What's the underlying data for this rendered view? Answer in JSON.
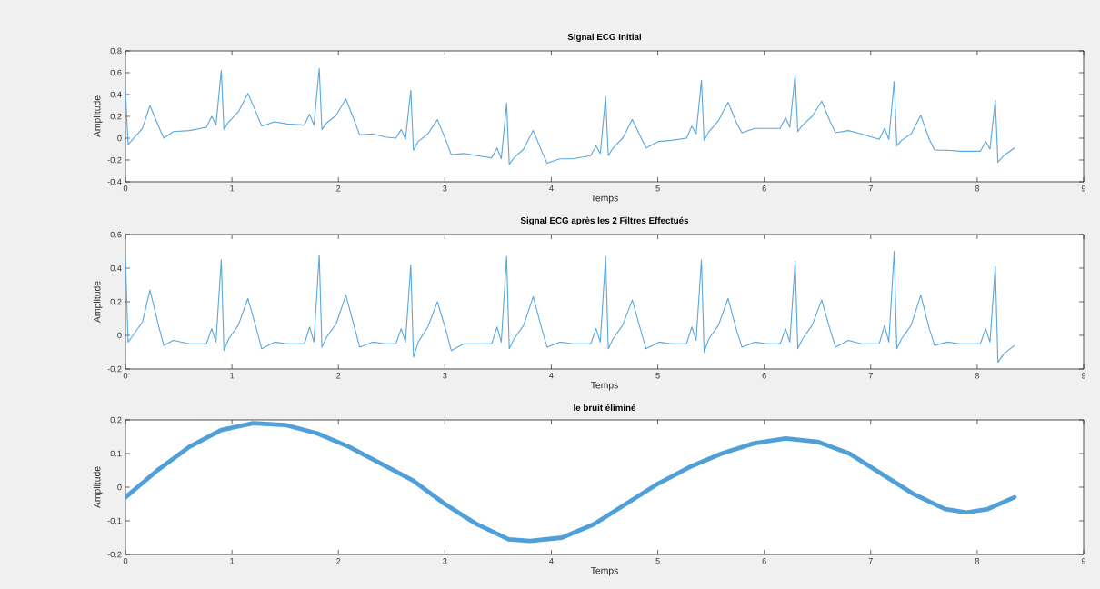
{
  "chart_data": [
    {
      "type": "line",
      "title": "Signal ECG Initial",
      "xlabel": "Temps",
      "ylabel": "Amplitude",
      "xlim": [
        0,
        9
      ],
      "xticks": [
        0,
        1,
        2,
        3,
        4,
        5,
        6,
        7,
        8,
        9
      ],
      "ylim": [
        -0.4,
        0.8
      ],
      "yticks": [
        -0.4,
        -0.2,
        0,
        0.2,
        0.4,
        0.6,
        0.8
      ],
      "x": [
        0.0,
        0.025,
        0.07,
        0.16,
        0.23,
        0.31,
        0.36,
        0.45,
        0.6,
        0.76,
        0.81,
        0.85,
        0.9,
        0.925,
        0.97,
        1.06,
        1.15,
        1.23,
        1.28,
        1.4,
        1.52,
        1.68,
        1.73,
        1.77,
        1.82,
        1.845,
        1.89,
        1.98,
        2.07,
        2.15,
        2.2,
        2.32,
        2.44,
        2.54,
        2.59,
        2.63,
        2.68,
        2.705,
        2.75,
        2.84,
        2.93,
        3.01,
        3.06,
        3.18,
        3.3,
        3.44,
        3.49,
        3.53,
        3.58,
        3.605,
        3.65,
        3.74,
        3.83,
        3.91,
        3.96,
        4.08,
        4.2,
        4.37,
        4.42,
        4.46,
        4.51,
        4.535,
        4.58,
        4.67,
        4.76,
        4.84,
        4.89,
        5.01,
        5.13,
        5.27,
        5.32,
        5.36,
        5.41,
        5.435,
        5.48,
        5.57,
        5.66,
        5.74,
        5.79,
        5.91,
        6.03,
        6.15,
        6.2,
        6.24,
        6.29,
        6.315,
        6.36,
        6.45,
        6.54,
        6.62,
        6.67,
        6.79,
        6.91,
        7.08,
        7.13,
        7.17,
        7.22,
        7.245,
        7.29,
        7.38,
        7.47,
        7.55,
        7.6,
        7.72,
        7.84,
        8.03,
        8.08,
        8.12,
        8.17,
        8.195,
        8.25,
        8.35
      ],
      "series": [
        {
          "color": "#5aa7dc",
          "values": [
            0.43,
            -0.06,
            -0.01,
            0.09,
            0.3,
            0.11,
            0.0,
            0.06,
            0.07,
            0.1,
            0.2,
            0.12,
            0.62,
            0.08,
            0.15,
            0.24,
            0.41,
            0.23,
            0.11,
            0.15,
            0.13,
            0.12,
            0.22,
            0.12,
            0.64,
            0.08,
            0.14,
            0.21,
            0.36,
            0.16,
            0.03,
            0.04,
            0.01,
            0.0,
            0.08,
            -0.01,
            0.44,
            -0.11,
            -0.03,
            0.04,
            0.17,
            -0.02,
            -0.15,
            -0.14,
            -0.16,
            -0.18,
            -0.09,
            -0.19,
            0.32,
            -0.24,
            -0.18,
            -0.1,
            0.07,
            -0.12,
            -0.23,
            -0.19,
            -0.19,
            -0.16,
            -0.07,
            -0.14,
            0.38,
            -0.16,
            -0.09,
            0.0,
            0.17,
            0.01,
            -0.09,
            -0.03,
            -0.02,
            0.0,
            0.11,
            0.04,
            0.53,
            -0.02,
            0.06,
            0.16,
            0.33,
            0.14,
            0.05,
            0.09,
            0.09,
            0.09,
            0.19,
            0.1,
            0.58,
            0.06,
            0.12,
            0.2,
            0.34,
            0.15,
            0.05,
            0.07,
            0.04,
            -0.01,
            0.09,
            -0.01,
            0.52,
            -0.07,
            -0.02,
            0.04,
            0.21,
            -0.01,
            -0.11,
            -0.11,
            -0.12,
            -0.12,
            -0.03,
            -0.1,
            0.35,
            -0.22,
            -0.16,
            -0.09
          ]
        }
      ]
    },
    {
      "type": "line",
      "title": "Signal ECG après les 2 Filtres Effectués",
      "xlabel": "Temps",
      "ylabel": "Amplitude",
      "xlim": [
        0,
        9
      ],
      "xticks": [
        0,
        1,
        2,
        3,
        4,
        5,
        6,
        7,
        8,
        9
      ],
      "ylim": [
        -0.2,
        0.6
      ],
      "yticks": [
        -0.2,
        0,
        0.2,
        0.4,
        0.6
      ],
      "x": [
        0.0,
        0.025,
        0.07,
        0.16,
        0.23,
        0.31,
        0.36,
        0.45,
        0.6,
        0.76,
        0.81,
        0.85,
        0.9,
        0.925,
        0.97,
        1.06,
        1.15,
        1.23,
        1.28,
        1.4,
        1.52,
        1.68,
        1.73,
        1.77,
        1.82,
        1.845,
        1.89,
        1.98,
        2.07,
        2.15,
        2.2,
        2.32,
        2.44,
        2.54,
        2.59,
        2.63,
        2.68,
        2.705,
        2.75,
        2.84,
        2.93,
        3.01,
        3.06,
        3.18,
        3.3,
        3.44,
        3.49,
        3.53,
        3.58,
        3.605,
        3.65,
        3.74,
        3.83,
        3.91,
        3.96,
        4.08,
        4.2,
        4.37,
        4.42,
        4.46,
        4.51,
        4.535,
        4.58,
        4.67,
        4.76,
        4.84,
        4.89,
        5.01,
        5.13,
        5.27,
        5.32,
        5.36,
        5.41,
        5.435,
        5.48,
        5.57,
        5.66,
        5.74,
        5.79,
        5.91,
        6.03,
        6.15,
        6.2,
        6.24,
        6.29,
        6.315,
        6.36,
        6.45,
        6.54,
        6.62,
        6.67,
        6.79,
        6.91,
        7.08,
        7.13,
        7.17,
        7.22,
        7.245,
        7.29,
        7.38,
        7.47,
        7.55,
        7.6,
        7.72,
        7.84,
        8.03,
        8.08,
        8.12,
        8.17,
        8.195,
        8.25,
        8.35
      ],
      "series": [
        {
          "color": "#5aa7dc",
          "values": [
            0.46,
            -0.04,
            0.0,
            0.08,
            0.27,
            0.06,
            -0.06,
            -0.03,
            -0.05,
            -0.05,
            0.04,
            -0.04,
            0.45,
            -0.09,
            -0.02,
            0.06,
            0.22,
            0.04,
            -0.08,
            -0.04,
            -0.05,
            -0.05,
            0.05,
            -0.04,
            0.48,
            -0.07,
            -0.01,
            0.07,
            0.24,
            0.05,
            -0.07,
            -0.04,
            -0.05,
            -0.05,
            0.04,
            -0.04,
            0.42,
            -0.13,
            -0.04,
            0.05,
            0.2,
            0.03,
            -0.09,
            -0.05,
            -0.05,
            -0.05,
            0.05,
            -0.04,
            0.47,
            -0.08,
            -0.02,
            0.06,
            0.23,
            0.04,
            -0.07,
            -0.04,
            -0.05,
            -0.05,
            0.04,
            -0.04,
            0.47,
            -0.08,
            -0.02,
            0.06,
            0.21,
            0.03,
            -0.08,
            -0.04,
            -0.05,
            -0.05,
            0.05,
            -0.03,
            0.45,
            -0.1,
            -0.02,
            0.06,
            0.22,
            0.03,
            -0.07,
            -0.04,
            -0.05,
            -0.05,
            0.04,
            -0.04,
            0.44,
            -0.08,
            -0.02,
            0.06,
            0.21,
            0.03,
            -0.07,
            -0.03,
            -0.05,
            -0.05,
            0.06,
            -0.04,
            0.5,
            -0.08,
            -0.02,
            0.06,
            0.24,
            0.04,
            -0.06,
            -0.04,
            -0.05,
            -0.05,
            0.04,
            -0.04,
            0.41,
            -0.16,
            -0.11,
            -0.06
          ]
        }
      ]
    },
    {
      "type": "line",
      "title": "le bruit éliminé",
      "xlabel": "Temps",
      "ylabel": "Amplitude",
      "xlim": [
        0,
        9
      ],
      "xticks": [
        0,
        1,
        2,
        3,
        4,
        5,
        6,
        7,
        8,
        9
      ],
      "ylim": [
        -0.2,
        0.2
      ],
      "yticks": [
        -0.2,
        -0.1,
        0,
        0.1,
        0.2
      ],
      "x": [
        0,
        0.3,
        0.6,
        0.9,
        1.2,
        1.5,
        1.8,
        2.1,
        2.4,
        2.7,
        3.0,
        3.3,
        3.6,
        3.8,
        4.1,
        4.4,
        4.7,
        5.0,
        5.3,
        5.6,
        5.9,
        6.2,
        6.5,
        6.8,
        7.1,
        7.4,
        7.7,
        7.9,
        8.1,
        8.35
      ],
      "series": [
        {
          "color": "#4f9fd8",
          "values": [
            -0.03,
            0.05,
            0.12,
            0.17,
            0.19,
            0.185,
            0.16,
            0.12,
            0.07,
            0.02,
            -0.05,
            -0.11,
            -0.155,
            -0.16,
            -0.15,
            -0.11,
            -0.05,
            0.01,
            0.06,
            0.1,
            0.13,
            0.145,
            0.135,
            0.1,
            0.04,
            -0.02,
            -0.065,
            -0.075,
            -0.065,
            -0.03
          ]
        }
      ]
    }
  ]
}
